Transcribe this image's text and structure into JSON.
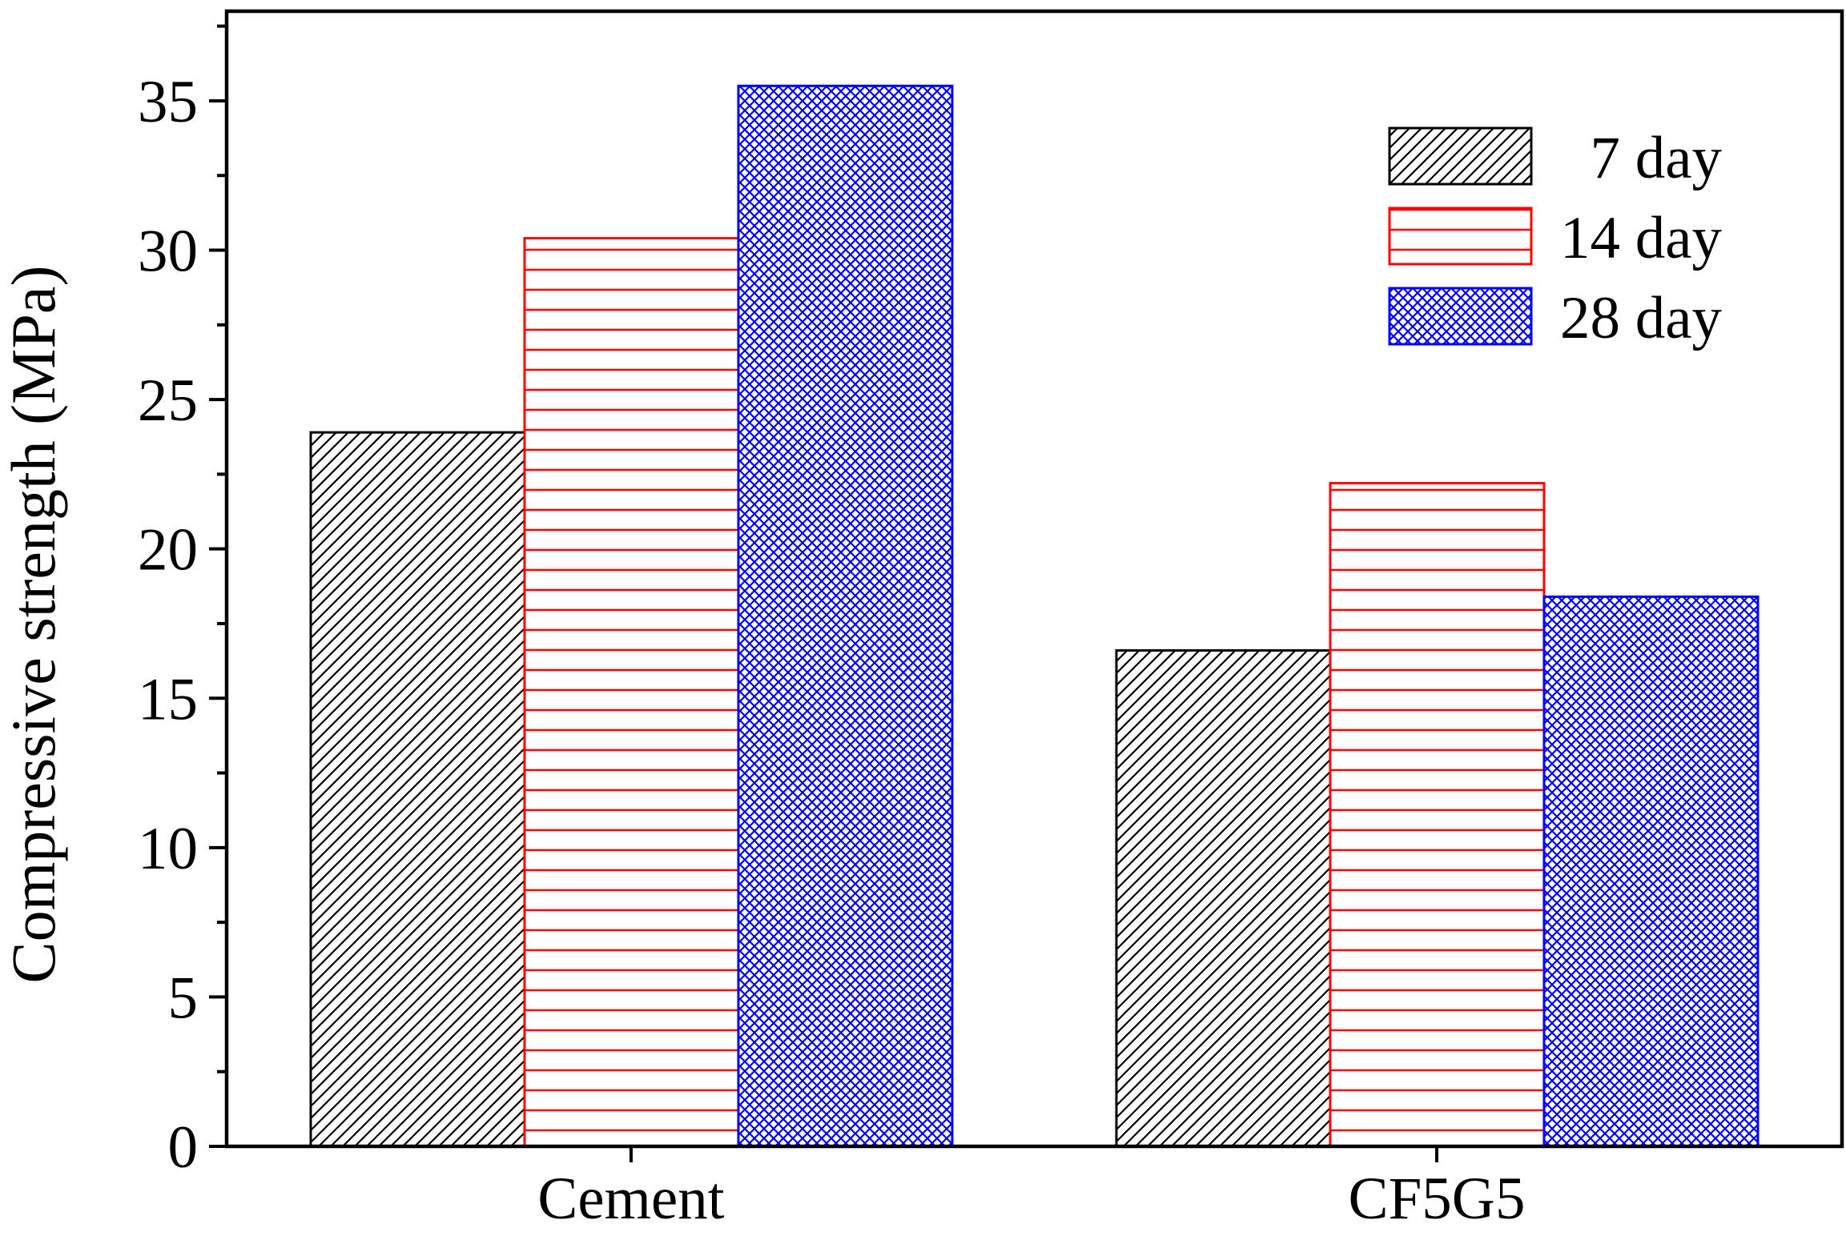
{
  "chart_data": {
    "type": "bar",
    "title": "",
    "xlabel": "",
    "ylabel": "Compressive strength (MPa)",
    "categories": [
      "Cement",
      "CF5G5"
    ],
    "series": [
      {
        "name": "7 day",
        "values": [
          23.9,
          16.6
        ],
        "color": "#000000",
        "pattern": "diagonal-hatch"
      },
      {
        "name": "14 day",
        "values": [
          30.4,
          22.2
        ],
        "color": "#ff0000",
        "pattern": "horizontal-lines"
      },
      {
        "name": "28 day",
        "values": [
          35.5,
          18.4
        ],
        "color": "#0000ff",
        "pattern": "crosshatch"
      }
    ],
    "ylim": [
      0,
      38
    ],
    "yticks": [
      0,
      5,
      10,
      15,
      20,
      25,
      30,
      35
    ],
    "ytick_labels": [
      "0",
      "5",
      "10",
      "15",
      "20",
      "25",
      "30",
      "35"
    ],
    "grid": false,
    "legend_position": "top-right"
  }
}
